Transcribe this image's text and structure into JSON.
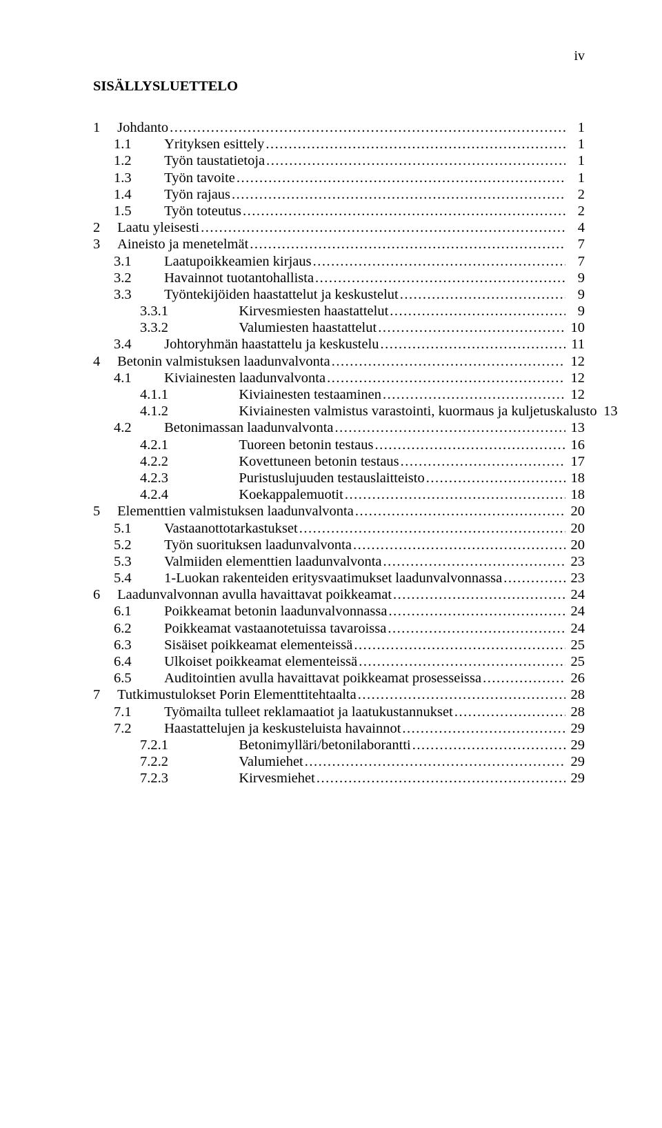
{
  "pageNumber": "iv",
  "sectionTitle": "SISÄLLYSLUETTELO",
  "leaderDots": ".........................................................................................................................................................................................................",
  "toc": [
    {
      "indent": 0,
      "label": "1",
      "title": "Johdanto",
      "page": "1"
    },
    {
      "indent": 1,
      "label": "1.1",
      "title": "Yrityksen esittely",
      "page": "1"
    },
    {
      "indent": 1,
      "label": "1.2",
      "title": "Työn taustatietoja",
      "page": "1"
    },
    {
      "indent": 1,
      "label": "1.3",
      "title": "Työn tavoite",
      "page": "1"
    },
    {
      "indent": 1,
      "label": "1.4",
      "title": "Työn rajaus",
      "page": "2"
    },
    {
      "indent": 1,
      "label": "1.5",
      "title": "Työn toteutus",
      "page": "2"
    },
    {
      "indent": 0,
      "label": "2",
      "title": "Laatu yleisesti",
      "page": "4"
    },
    {
      "indent": 0,
      "label": "3",
      "title": "Aineisto ja menetelmät",
      "page": "7"
    },
    {
      "indent": 1,
      "label": "3.1",
      "title": "Laatupoikkeamien kirjaus",
      "page": "7"
    },
    {
      "indent": 1,
      "label": "3.2",
      "title": "Havainnot tuotantohallista",
      "page": "9"
    },
    {
      "indent": 1,
      "label": "3.3",
      "title": "Työntekijöiden haastattelut ja keskustelut",
      "page": "9"
    },
    {
      "indent": 2,
      "label": "3.3.1",
      "title": "Kirvesmiesten haastattelut",
      "page": "9"
    },
    {
      "indent": 2,
      "label": "3.3.2",
      "title": "Valumiesten haastattelut",
      "page": "10"
    },
    {
      "indent": 1,
      "label": "3.4",
      "title": "Johtoryhmän haastattelu ja keskustelu",
      "page": "11"
    },
    {
      "indent": 0,
      "label": "4",
      "title": "Betonin valmistuksen laadunvalvonta",
      "page": "12"
    },
    {
      "indent": 1,
      "label": "4.1",
      "title": "Kiviainesten laadunvalvonta",
      "page": "12"
    },
    {
      "indent": 2,
      "label": "4.1.1",
      "title": "Kiviainesten testaaminen",
      "page": "12"
    },
    {
      "indent": 2,
      "label": "4.1.2",
      "title": "Kiviainesten valmistus varastointi, kuormaus ja kuljetuskalusto",
      "page": "13"
    },
    {
      "indent": 1,
      "label": "4.2",
      "title": "Betonimassan laadunvalvonta",
      "page": "13"
    },
    {
      "indent": 2,
      "label": "4.2.1",
      "title": "Tuoreen betonin testaus",
      "page": "16"
    },
    {
      "indent": 2,
      "label": "4.2.2",
      "title": "Kovettuneen betonin testaus",
      "page": "17"
    },
    {
      "indent": 2,
      "label": "4.2.3",
      "title": "Puristuslujuuden testauslaitteisto",
      "page": "18"
    },
    {
      "indent": 2,
      "label": "4.2.4",
      "title": "Koekappalemuotit",
      "page": "18"
    },
    {
      "indent": 0,
      "label": "5",
      "title": "Elementtien valmistuksen laadunvalvonta",
      "page": "20"
    },
    {
      "indent": 1,
      "label": "5.1",
      "title": "Vastaanottotarkastukset",
      "page": "20"
    },
    {
      "indent": 1,
      "label": "5.2",
      "title": "Työn suorituksen laadunvalvonta",
      "page": "20"
    },
    {
      "indent": 1,
      "label": "5.3",
      "title": "Valmiiden elementtien laadunvalvonta",
      "page": "23"
    },
    {
      "indent": 1,
      "label": "5.4",
      "title": "1-Luokan rakenteiden eritysvaatimukset laadunvalvonnassa",
      "page": "23"
    },
    {
      "indent": 0,
      "label": "6",
      "title": "Laadunvalvonnan avulla havaittavat poikkeamat",
      "page": "24"
    },
    {
      "indent": 1,
      "label": "6.1",
      "title": "Poikkeamat betonin laadunvalvonnassa",
      "page": "24"
    },
    {
      "indent": 1,
      "label": "6.2",
      "title": "Poikkeamat vastaanotetuissa tavaroissa",
      "page": "24"
    },
    {
      "indent": 1,
      "label": "6.3",
      "title": "Sisäiset poikkeamat elementeissä",
      "page": "25"
    },
    {
      "indent": 1,
      "label": "6.4",
      "title": "Ulkoiset poikkeamat elementeissä",
      "page": "25"
    },
    {
      "indent": 1,
      "label": "6.5",
      "title": "Auditointien avulla havaittavat poikkeamat prosesseissa",
      "page": "26"
    },
    {
      "indent": 0,
      "label": "7",
      "title": "Tutkimustulokset Porin Elementtitehtaalta",
      "page": "28"
    },
    {
      "indent": 1,
      "label": "7.1",
      "title": "Työmailta tulleet reklamaatiot ja laatukustannukset",
      "page": "28"
    },
    {
      "indent": 1,
      "label": "7.2",
      "title": "Haastattelujen ja keskusteluista havainnot",
      "page": "29"
    },
    {
      "indent": 2,
      "label": "7.2.1",
      "title": "Betonimylläri/betonilaborantti",
      "page": "29"
    },
    {
      "indent": 2,
      "label": "7.2.2",
      "title": "Valumiehet",
      "page": "29"
    },
    {
      "indent": 2,
      "label": "7.2.3",
      "title": "Kirvesmiehet",
      "page": "29"
    }
  ]
}
